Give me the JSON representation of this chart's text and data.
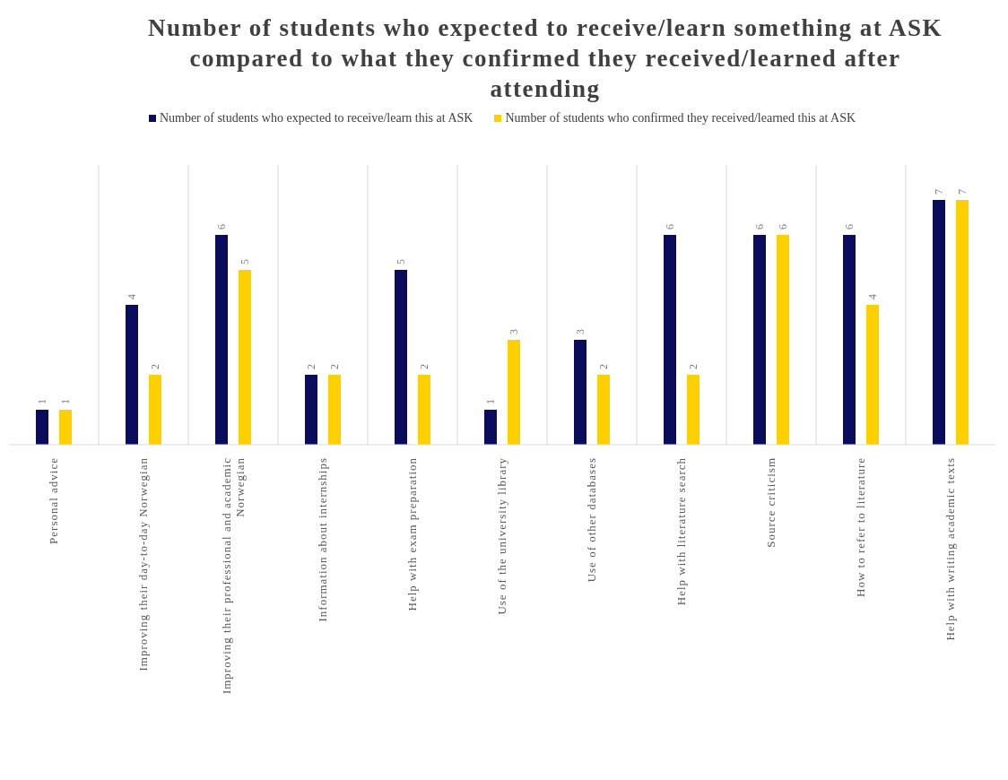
{
  "chart_data": {
    "type": "bar",
    "title": "Number of students who expected to receive/learn something at ASK compared to what they confirmed they received/learned after attending",
    "categories": [
      "Personal advice",
      "Improving their day-to-day Norwegian",
      "Improving their professional and academic Norwegian",
      "Information about internships",
      "Help with exam preparation",
      "Use of the university library",
      "Use of other databases",
      "Help with literature search",
      "Source criticism",
      "How to refer to literature",
      "Help with writing academic texts"
    ],
    "series": [
      {
        "name": "Number of students who expected to receive/learn this at ASK",
        "color": "#0c0c5c",
        "values": [
          1,
          4,
          6,
          2,
          5,
          1,
          3,
          6,
          6,
          6,
          7
        ]
      },
      {
        "name": "Number of students who confirmed they received/learned this at ASK",
        "color": "#ffd000",
        "values": [
          1,
          2,
          5,
          2,
          2,
          3,
          2,
          2,
          6,
          4,
          7
        ]
      }
    ],
    "data_labels": true,
    "grid": "x",
    "legend": "top"
  }
}
